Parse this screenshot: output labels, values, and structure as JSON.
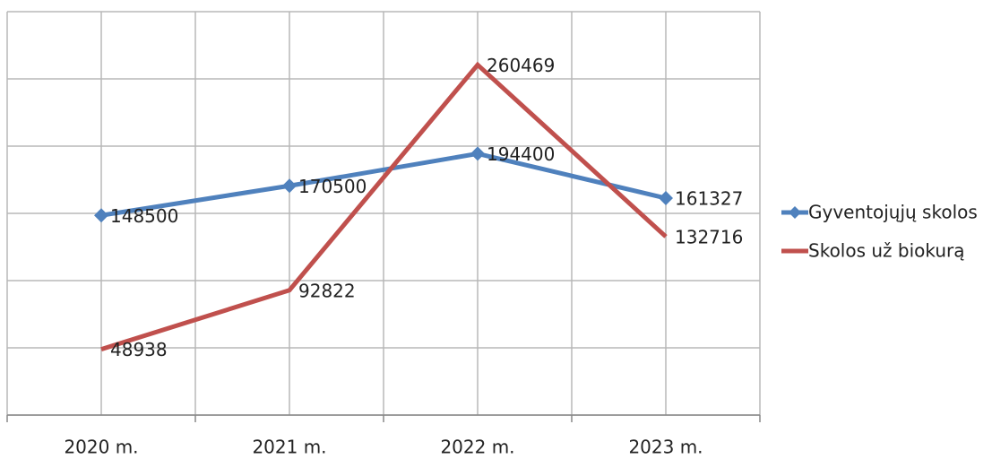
{
  "chart_data": {
    "type": "line",
    "categories": [
      "2020 m.",
      "2021 m.",
      "2022 m.",
      "2023 m."
    ],
    "series": [
      {
        "name": "Gyventojųjų skolos",
        "color": "#4f81bd",
        "values": [
          148500,
          170500,
          194400,
          161327
        ]
      },
      {
        "name": "Skolos už biokurą",
        "color": "#c0504d",
        "values": [
          48938,
          92822,
          260469,
          132716
        ]
      }
    ],
    "ylim": [
      0,
      300000
    ],
    "yticks": [
      0,
      50000,
      100000,
      150000,
      200000,
      250000,
      300000
    ],
    "grid": true,
    "legend": "right"
  }
}
